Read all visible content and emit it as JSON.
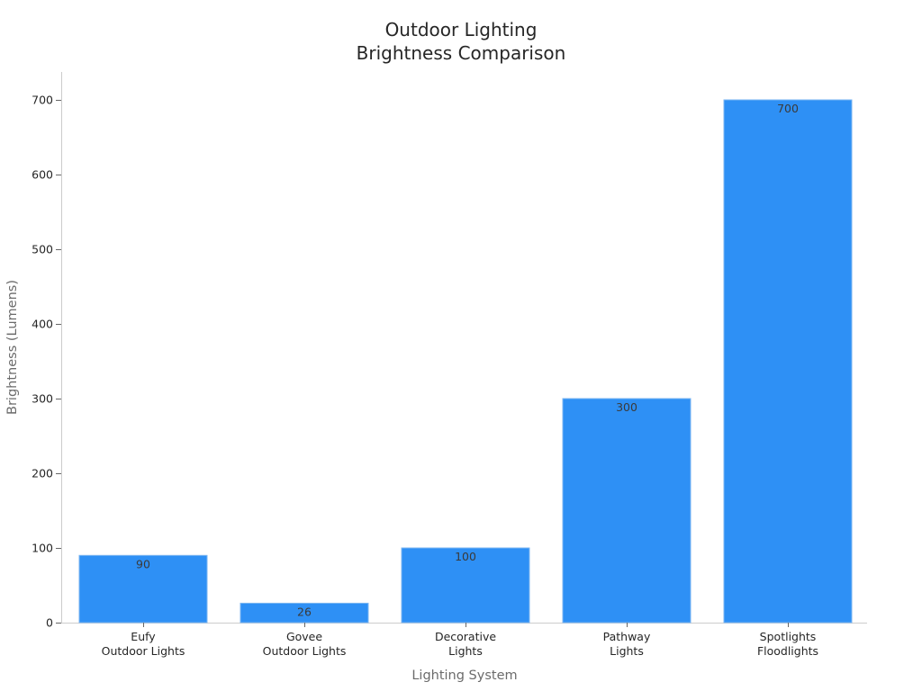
{
  "chart_data": {
    "type": "bar",
    "title_lines": [
      "Outdoor Lighting",
      "Brightness Comparison"
    ],
    "xlabel": "Lighting System",
    "ylabel": "Brightness (Lumens)",
    "categories": [
      [
        "Eufy",
        "Outdoor Lights"
      ],
      [
        "Govee",
        "Outdoor Lights"
      ],
      [
        "Decorative",
        "Lights"
      ],
      [
        "Pathway",
        "Lights"
      ],
      [
        "Spotlights",
        "Floodlights"
      ]
    ],
    "values": [
      90,
      26,
      100,
      300,
      700
    ],
    "data_labels": [
      "90",
      "26",
      "100",
      "300",
      "700"
    ],
    "ylim": [
      0,
      740
    ],
    "yticks": [
      0,
      100,
      200,
      300,
      400,
      500,
      600,
      700
    ],
    "grid": false,
    "legend": "none",
    "bar_color": "#2e90f5",
    "bar_edge_color": "#7bb6f2"
  }
}
